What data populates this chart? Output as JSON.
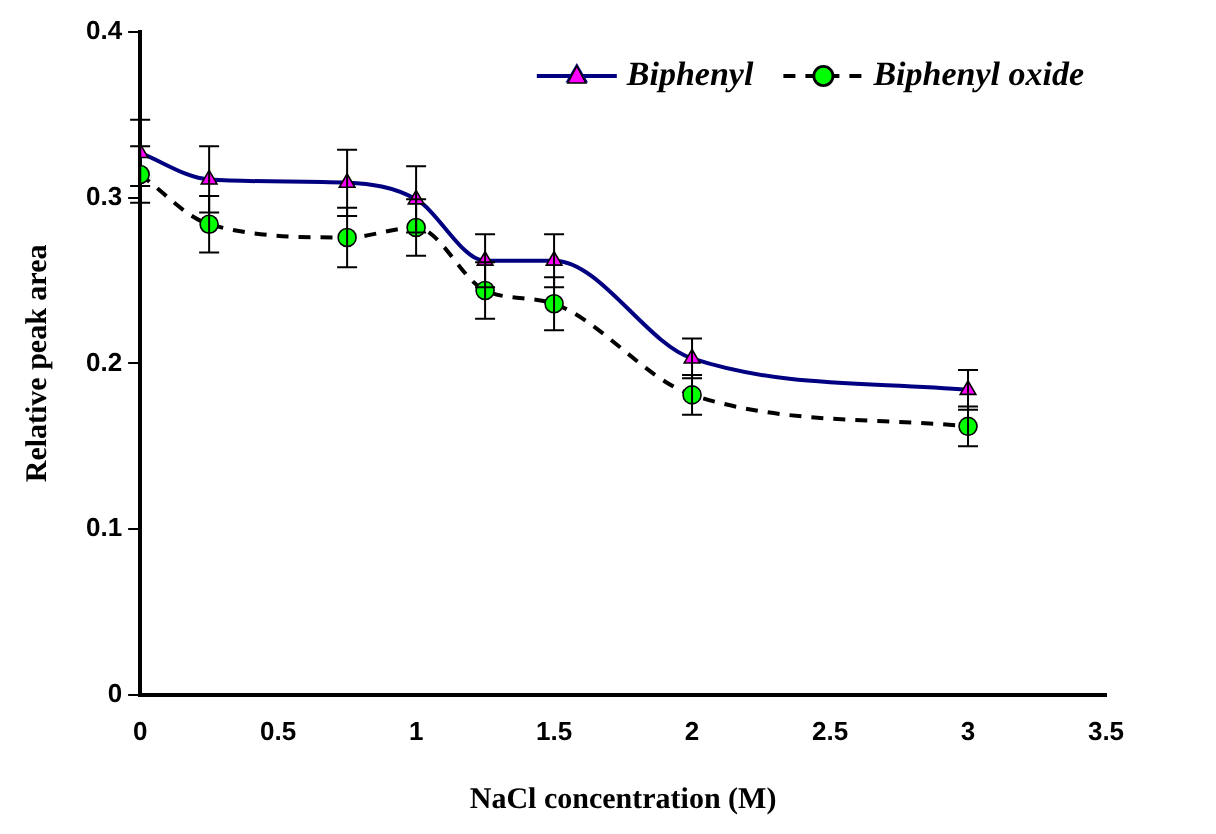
{
  "chart_data": {
    "type": "line",
    "xlabel": "NaCl concentration (M)",
    "ylabel": "Relative peak area",
    "x": [
      0,
      0.25,
      0.75,
      1,
      1.25,
      1.5,
      2,
      3
    ],
    "series": [
      {
        "name": "Biphenyl",
        "color": "#000080",
        "colors": [
          "#ff00ff",
          "#ff00ff",
          "#ff00ff",
          "#ff00ff",
          "#ff00ff",
          "#ff00ff",
          "#ff00ff",
          "#ff00ff"
        ],
        "marker": "triangle",
        "line_style": "solid",
        "values": [
          0.327,
          0.311,
          0.309,
          0.299,
          0.262,
          0.262,
          0.203,
          0.184
        ],
        "errors": [
          0.02,
          0.02,
          0.02,
          0.02,
          0.016,
          0.016,
          0.012,
          0.012
        ]
      },
      {
        "name": "Biphenyl oxide",
        "color": "#000000",
        "colors": [
          "#00ff00",
          "#00ff00",
          "#00ff00",
          "#00ff00",
          "#00ff00",
          "#00ff00",
          "#00ff00",
          "#00ff00"
        ],
        "marker": "circle",
        "line_style": "dashed",
        "values": [
          0.314,
          0.284,
          0.276,
          0.282,
          0.244,
          0.236,
          0.181,
          0.162
        ],
        "errors": [
          0.017,
          0.017,
          0.018,
          0.017,
          0.017,
          0.016,
          0.012,
          0.012
        ]
      }
    ],
    "xlim": [
      0,
      3.5
    ],
    "xticks": [
      0,
      0.5,
      1,
      1.5,
      2,
      2.5,
      3,
      3.5
    ],
    "ylim": [
      0,
      0.4
    ],
    "yticks": [
      0,
      0.1,
      0.2,
      0.3,
      0.4
    ],
    "grid": false,
    "legend": "top right"
  }
}
